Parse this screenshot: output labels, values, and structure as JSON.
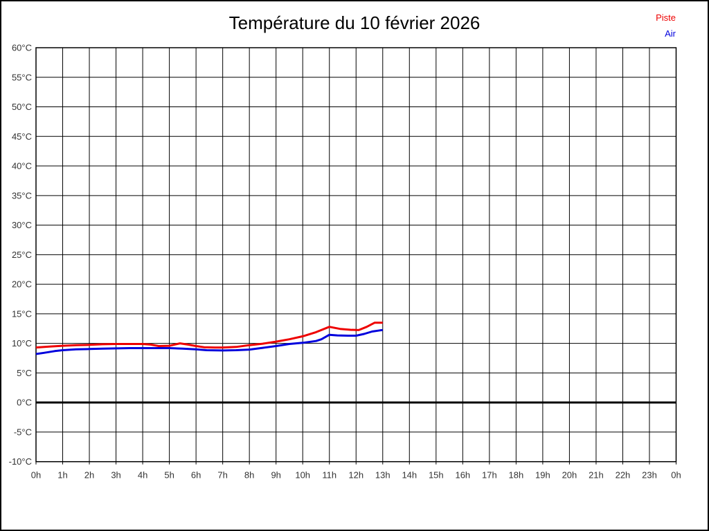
{
  "chart_data": {
    "type": "line",
    "title": "Température du 10 février 2026",
    "xlabel": "",
    "ylabel": "",
    "xlim": [
      0,
      24
    ],
    "ylim": [
      -10,
      60
    ],
    "y_step": 5,
    "grid": true,
    "legend_position": "top-right",
    "x_tick_labels": [
      "0h",
      "1h",
      "2h",
      "3h",
      "4h",
      "5h",
      "6h",
      "7h",
      "8h",
      "9h",
      "10h",
      "11h",
      "12h",
      "13h",
      "14h",
      "15h",
      "16h",
      "17h",
      "18h",
      "19h",
      "20h",
      "21h",
      "22h",
      "23h",
      "0h"
    ],
    "y_tick_labels": [
      "60°C",
      "55°C",
      "50°C",
      "45°C",
      "40°C",
      "35°C",
      "30°C",
      "25°C",
      "20°C",
      "15°C",
      "10°C",
      "5°C",
      "0°C",
      "-5°C",
      "-10°C"
    ],
    "zero_line": {
      "value": 0,
      "color": "#000000",
      "width": 3
    },
    "grid_color": "#000000",
    "series": [
      {
        "name": "Piste",
        "color": "#ee0000",
        "points": [
          [
            0,
            9.3
          ],
          [
            0.5,
            9.45
          ],
          [
            1,
            9.6
          ],
          [
            1.5,
            9.7
          ],
          [
            2,
            9.75
          ],
          [
            2.5,
            9.85
          ],
          [
            3,
            9.9
          ],
          [
            3.5,
            9.9
          ],
          [
            4,
            9.9
          ],
          [
            4.3,
            9.8
          ],
          [
            4.6,
            9.55
          ],
          [
            5,
            9.6
          ],
          [
            5.4,
            10.0
          ],
          [
            5.7,
            9.8
          ],
          [
            6,
            9.55
          ],
          [
            6.3,
            9.35
          ],
          [
            6.7,
            9.3
          ],
          [
            7,
            9.3
          ],
          [
            7.5,
            9.4
          ],
          [
            8,
            9.7
          ],
          [
            8.5,
            9.95
          ],
          [
            9,
            10.3
          ],
          [
            9.5,
            10.7
          ],
          [
            10,
            11.2
          ],
          [
            10.5,
            11.9
          ],
          [
            11,
            12.8
          ],
          [
            11.4,
            12.45
          ],
          [
            11.8,
            12.3
          ],
          [
            12.1,
            12.25
          ],
          [
            12.4,
            12.8
          ],
          [
            12.7,
            13.5
          ],
          [
            13,
            13.5
          ]
        ]
      },
      {
        "name": "Air",
        "color": "#0000dd",
        "points": [
          [
            0,
            8.2
          ],
          [
            0.3,
            8.4
          ],
          [
            0.7,
            8.7
          ],
          [
            1,
            8.85
          ],
          [
            1.5,
            9.0
          ],
          [
            2,
            9.05
          ],
          [
            2.5,
            9.1
          ],
          [
            3,
            9.15
          ],
          [
            3.5,
            9.2
          ],
          [
            4,
            9.2
          ],
          [
            4.5,
            9.2
          ],
          [
            5,
            9.2
          ],
          [
            5.5,
            9.1
          ],
          [
            6,
            9.0
          ],
          [
            6.4,
            8.85
          ],
          [
            7,
            8.8
          ],
          [
            7.5,
            8.85
          ],
          [
            8,
            8.95
          ],
          [
            8.5,
            9.25
          ],
          [
            9,
            9.55
          ],
          [
            9.5,
            9.9
          ],
          [
            10,
            10.1
          ],
          [
            10.5,
            10.4
          ],
          [
            10.7,
            10.7
          ],
          [
            11,
            11.45
          ],
          [
            11.3,
            11.35
          ],
          [
            11.7,
            11.3
          ],
          [
            12,
            11.3
          ],
          [
            12.3,
            11.6
          ],
          [
            12.6,
            12.0
          ],
          [
            12.9,
            12.2
          ],
          [
            13,
            12.25
          ]
        ]
      }
    ]
  }
}
